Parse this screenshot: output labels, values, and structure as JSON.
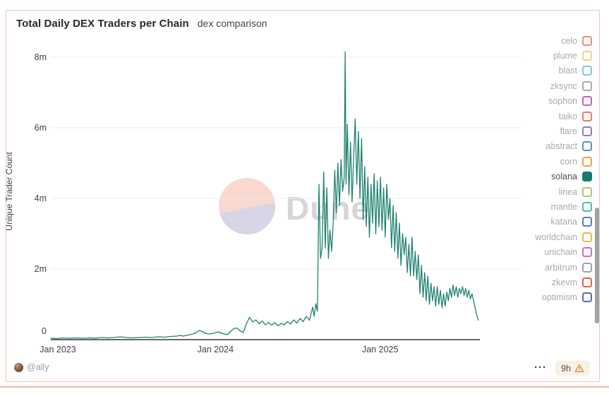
{
  "card": {
    "title": "Total Daily DEX Traders per Chain",
    "subtitle": "dex comparison"
  },
  "watermark": {
    "text": "Dune"
  },
  "chart_data": {
    "type": "line",
    "title": "Total Daily DEX Traders per Chain",
    "xlabel": "",
    "ylabel": "Unique Trader Count",
    "y_unit": "millions of traders",
    "x_unit": "weeks since Jan 2023",
    "xlim": [
      0,
      136
    ],
    "ylim": [
      0,
      8.4
    ],
    "grid": "horizontal",
    "legend_position": "right",
    "yticks": [
      {
        "label": "0",
        "value": 0
      },
      {
        "label": "2m",
        "value": 2
      },
      {
        "label": "4m",
        "value": 4
      },
      {
        "label": "6m",
        "value": 6
      },
      {
        "label": "8m",
        "value": 8
      }
    ],
    "xticks": [
      {
        "label": "Jan 2023",
        "week": 0
      },
      {
        "label": "Jan 2024",
        "week": 52.2
      },
      {
        "label": "Jan 2025",
        "week": 104.4
      }
    ],
    "series": [
      {
        "name": "solana",
        "color": "#1f8171",
        "points": [
          [
            0,
            0.04
          ],
          [
            2,
            0.03
          ],
          [
            4,
            0.05
          ],
          [
            6,
            0.04
          ],
          [
            8,
            0.05
          ],
          [
            10,
            0.04
          ],
          [
            12,
            0.05
          ],
          [
            14,
            0.04
          ],
          [
            16,
            0.06
          ],
          [
            18,
            0.05
          ],
          [
            20,
            0.06
          ],
          [
            22,
            0.08
          ],
          [
            24,
            0.06
          ],
          [
            26,
            0.05
          ],
          [
            28,
            0.06
          ],
          [
            30,
            0.07
          ],
          [
            32,
            0.06
          ],
          [
            34,
            0.08
          ],
          [
            36,
            0.07
          ],
          [
            38,
            0.09
          ],
          [
            40,
            0.1
          ],
          [
            41,
            0.12
          ],
          [
            42,
            0.1
          ],
          [
            43,
            0.12
          ],
          [
            44,
            0.14
          ],
          [
            45,
            0.16
          ],
          [
            46,
            0.19
          ],
          [
            47,
            0.26
          ],
          [
            48,
            0.23
          ],
          [
            49,
            0.18
          ],
          [
            50,
            0.16
          ],
          [
            51,
            0.17
          ],
          [
            52,
            0.19
          ],
          [
            53,
            0.22
          ],
          [
            54,
            0.19
          ],
          [
            55,
            0.16
          ],
          [
            56,
            0.14
          ],
          [
            57,
            0.23
          ],
          [
            58,
            0.31
          ],
          [
            59,
            0.33
          ],
          [
            60,
            0.25
          ],
          [
            61,
            0.2
          ],
          [
            62,
            0.45
          ],
          [
            63,
            0.63
          ],
          [
            64,
            0.5
          ],
          [
            65,
            0.56
          ],
          [
            66,
            0.45
          ],
          [
            67,
            0.53
          ],
          [
            68,
            0.42
          ],
          [
            69,
            0.49
          ],
          [
            70,
            0.41
          ],
          [
            71,
            0.48
          ],
          [
            72,
            0.39
          ],
          [
            73,
            0.46
          ],
          [
            74,
            0.42
          ],
          [
            75,
            0.51
          ],
          [
            76,
            0.44
          ],
          [
            77,
            0.56
          ],
          [
            78,
            0.47
          ],
          [
            79,
            0.6
          ],
          [
            80,
            0.51
          ],
          [
            81,
            0.66
          ],
          [
            82,
            0.55
          ],
          [
            83,
            0.92
          ],
          [
            83.5,
            0.66
          ],
          [
            84,
            1.02
          ],
          [
            84.5,
            0.8
          ],
          [
            85,
            4.4
          ],
          [
            85.5,
            2.3
          ],
          [
            86,
            2.6
          ],
          [
            86.5,
            4.75
          ],
          [
            87,
            2.6
          ],
          [
            87.5,
            4.3
          ],
          [
            88,
            2.3
          ],
          [
            88.5,
            3.1
          ],
          [
            89,
            2.5
          ],
          [
            89.5,
            3.3
          ],
          [
            90,
            4.8
          ],
          [
            90.5,
            3.6
          ],
          [
            91,
            5.0
          ],
          [
            91.5,
            3.8
          ],
          [
            92,
            5.1
          ],
          [
            92.5,
            4.2
          ],
          [
            93,
            4.6
          ],
          [
            93.3,
            8.15
          ],
          [
            93.6,
            4.4
          ],
          [
            94,
            6.1
          ],
          [
            94.5,
            4.1
          ],
          [
            95,
            5.6
          ],
          [
            95.5,
            3.9
          ],
          [
            96,
            5.2
          ],
          [
            96.5,
            6.25
          ],
          [
            97,
            4.4
          ],
          [
            97.5,
            5.9
          ],
          [
            98,
            4.0
          ],
          [
            98.5,
            5.7
          ],
          [
            99,
            3.4
          ],
          [
            99.5,
            4.9
          ],
          [
            100,
            3.2
          ],
          [
            100.5,
            4.6
          ],
          [
            101,
            2.9
          ],
          [
            101.5,
            4.4
          ],
          [
            102,
            3.3
          ],
          [
            102.5,
            4.7
          ],
          [
            103,
            3.0
          ],
          [
            103.5,
            4.5
          ],
          [
            104,
            3.2
          ],
          [
            104.5,
            4.6
          ],
          [
            105,
            3.1
          ],
          [
            105.5,
            4.3
          ],
          [
            106,
            2.9
          ],
          [
            106.5,
            4.4
          ],
          [
            107,
            3.4
          ],
          [
            107.5,
            4.0
          ],
          [
            108,
            2.6
          ],
          [
            108.5,
            3.8
          ],
          [
            109,
            2.5
          ],
          [
            109.5,
            3.6
          ],
          [
            110,
            2.3
          ],
          [
            110.5,
            3.3
          ],
          [
            111,
            2.1
          ],
          [
            111.5,
            3.0
          ],
          [
            112,
            2.4
          ],
          [
            112.5,
            2.9
          ],
          [
            113,
            1.9
          ],
          [
            113.5,
            2.7
          ],
          [
            114,
            1.8
          ],
          [
            114.5,
            2.9
          ],
          [
            115,
            1.8
          ],
          [
            115.5,
            2.5
          ],
          [
            116,
            1.7
          ],
          [
            116.5,
            2.4
          ],
          [
            117,
            1.3
          ],
          [
            117.5,
            2.1
          ],
          [
            118,
            1.2
          ],
          [
            118.5,
            1.9
          ],
          [
            119,
            1.1
          ],
          [
            119.5,
            1.8
          ],
          [
            120,
            1.0
          ],
          [
            120.5,
            1.6
          ],
          [
            121,
            1.1
          ],
          [
            121.5,
            1.5
          ],
          [
            122,
            0.95
          ],
          [
            122.5,
            1.5
          ],
          [
            123,
            1.0
          ],
          [
            123.5,
            1.4
          ],
          [
            124,
            0.9
          ],
          [
            124.5,
            1.3
          ],
          [
            125,
            0.95
          ],
          [
            125.5,
            1.35
          ],
          [
            126,
            1.1
          ],
          [
            126.5,
            1.45
          ],
          [
            127,
            1.2
          ],
          [
            127.5,
            1.55
          ],
          [
            128,
            1.25
          ],
          [
            128.5,
            1.5
          ],
          [
            129,
            1.2
          ],
          [
            129.5,
            1.45
          ],
          [
            130,
            1.3
          ],
          [
            130.5,
            1.5
          ],
          [
            131,
            1.25
          ],
          [
            131.5,
            1.45
          ],
          [
            132,
            1.2
          ],
          [
            132.5,
            1.4
          ],
          [
            133,
            1.15
          ],
          [
            133.5,
            1.3
          ],
          [
            134,
            1.1
          ],
          [
            134.5,
            0.9
          ],
          [
            135,
            0.7
          ],
          [
            135.5,
            0.55
          ]
        ]
      }
    ]
  },
  "legend": {
    "items": [
      {
        "label": "celo",
        "color": "#ee8a74",
        "selected": false
      },
      {
        "label": "plume",
        "color": "#f0d37f",
        "selected": false
      },
      {
        "label": "blast",
        "color": "#7fc9db",
        "selected": false
      },
      {
        "label": "zksync",
        "color": "#a9abb2",
        "selected": false
      },
      {
        "label": "sophon",
        "color": "#c760b4",
        "selected": false
      },
      {
        "label": "taiko",
        "color": "#ee7a64",
        "selected": false
      },
      {
        "label": "flare",
        "color": "#8f7cba",
        "selected": false
      },
      {
        "label": "abstract",
        "color": "#5e91cc",
        "selected": false
      },
      {
        "label": "corn",
        "color": "#e6a93e",
        "selected": false
      },
      {
        "label": "solana",
        "color": "#177a6c",
        "selected": true
      },
      {
        "label": "linea",
        "color": "#a5cb70",
        "selected": false
      },
      {
        "label": "mantle",
        "color": "#55bb9f",
        "selected": false
      },
      {
        "label": "katana",
        "color": "#6079b8",
        "selected": false
      },
      {
        "label": "worldchain",
        "color": "#e9b84d",
        "selected": false
      },
      {
        "label": "unichain",
        "color": "#d76cb6",
        "selected": false
      },
      {
        "label": "arbitrum",
        "color": "#a0a2a9",
        "selected": false
      },
      {
        "label": "zkevm",
        "color": "#e6604e",
        "selected": false
      },
      {
        "label": "optimism",
        "color": "#5a6cab",
        "selected": false
      }
    ]
  },
  "footer": {
    "author": "@ally",
    "menu_label": "···",
    "age_badge": "9h"
  },
  "colors": {
    "card_border": "#f5c4b2",
    "bottom_rule": "#f2b6a0",
    "line": "#1f8171",
    "gridline": "#ededf0",
    "axis_line": "#35363c",
    "badge_bg": "#fbf0e3",
    "warning_icon": "#bf985d"
  }
}
